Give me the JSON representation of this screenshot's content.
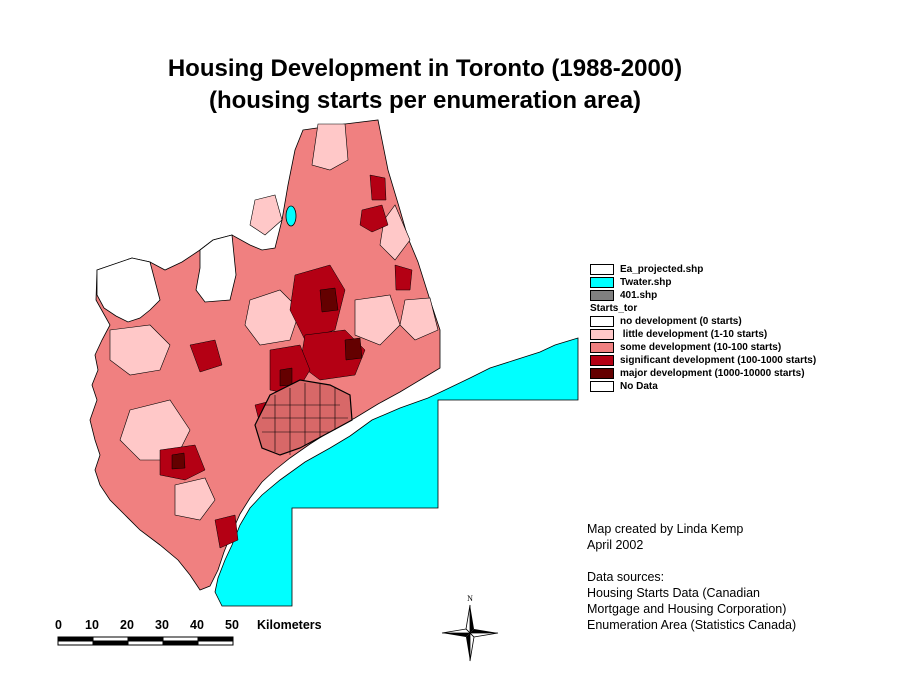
{
  "title": {
    "line1": "Housing Development in Toronto (1988-2000)",
    "line2": "(housing starts per enumeration area)"
  },
  "legend": {
    "layers": [
      {
        "label": "Ea_projected.shp",
        "color": "#ffffff"
      },
      {
        "label": "Twater.shp",
        "color": "#00ffff"
      },
      {
        "label": "401.shp",
        "color": "#808080"
      }
    ],
    "field": "Starts_tor",
    "classes": [
      {
        "label": "no development  (0 starts)",
        "color": "#ffffff"
      },
      {
        "label": " little development (1-10 starts)",
        "color": "#ffc8c8"
      },
      {
        "label": "some development (10-100 starts)",
        "color": "#f08080"
      },
      {
        "label": "significant development (100-1000 starts)",
        "color": "#b40014"
      },
      {
        "label": "major development (1000-10000 starts)",
        "color": "#640000"
      },
      {
        "label": "No Data",
        "color": "#ffffff"
      }
    ]
  },
  "credits": {
    "lines": [
      "Map created by Linda Kemp",
      "April 2002",
      "",
      "Data sources:",
      "Housing Starts Data (Canadian",
      "Mortgage and Housing Corporation)",
      "Enumeration Area (Statistics Canada)"
    ]
  },
  "scale_bar": {
    "ticks": [
      "0",
      "10",
      "20",
      "30",
      "40",
      "50"
    ],
    "unit": "Kilometers"
  },
  "north_arrow": {
    "label": "N"
  },
  "colors": {
    "water": "#00ffff",
    "no_development": "#ffffff",
    "little": "#ffc8c8",
    "some": "#f08080",
    "significant": "#b40014",
    "major": "#640000"
  }
}
